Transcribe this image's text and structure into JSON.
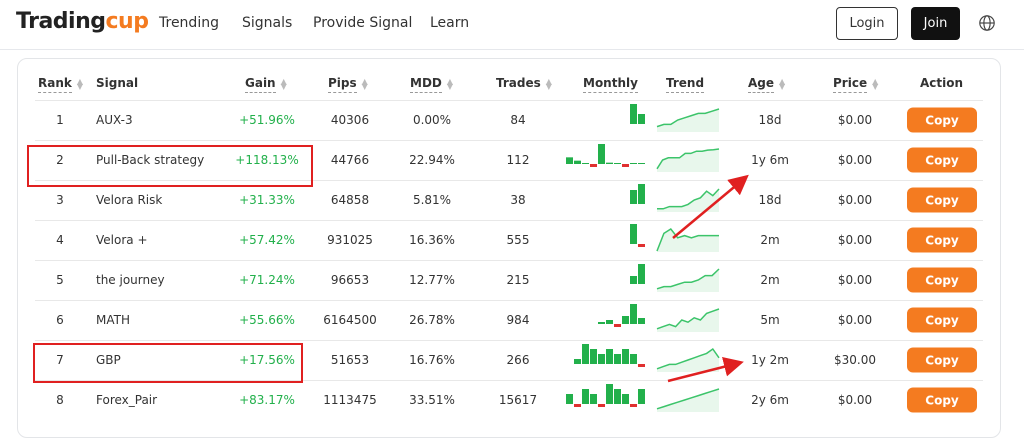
{
  "header": {
    "logo_main": "Trading",
    "logo_accent": "cup",
    "nav": [
      "Trending",
      "Signals",
      "Provide Signal",
      "Learn"
    ],
    "login": "Login",
    "join": "Join",
    "globe_icon": "globe-icon"
  },
  "table": {
    "columns": [
      "Rank",
      "Signal",
      "Gain",
      "Pips",
      "MDD",
      "Trades",
      "Monthly",
      "Trend",
      "Age",
      "Price",
      "Action"
    ],
    "copy_label": "Copy",
    "colors": {
      "positive": "#22b04b",
      "negative": "#e03030",
      "accent": "#f47b20"
    },
    "rows": [
      {
        "rank": "1",
        "signal": "AUX-3",
        "gain": "+51.96%",
        "pips": "40306",
        "mdd": "0.00%",
        "trades": "84",
        "age": "18d",
        "price": "$0.00",
        "monthly": [
          10,
          5
        ],
        "trend": [
          2,
          3,
          3,
          5,
          6,
          7,
          8,
          8,
          9,
          10
        ]
      },
      {
        "rank": "2",
        "signal": "Pull-Back strategy",
        "gain": "+118.13%",
        "pips": "44766",
        "mdd": "22.94%",
        "trades": "112",
        "age": "1y 6m",
        "price": "$0.00",
        "monthly": [
          2,
          1,
          0,
          -1.5,
          6,
          0.4,
          0.3,
          -0.2,
          0.2,
          0.3
        ],
        "trend": [
          1,
          5,
          6,
          6,
          6,
          8,
          8,
          9,
          9,
          9.5,
          9.7,
          10
        ]
      },
      {
        "rank": "3",
        "signal": "Velora Risk",
        "gain": "+31.33%",
        "pips": "64858",
        "mdd": "5.81%",
        "trades": "38",
        "age": "18d",
        "price": "$0.00",
        "monthly": [
          7,
          10
        ],
        "trend": [
          1,
          1,
          2,
          2,
          2,
          3,
          5,
          6,
          9,
          7,
          10
        ]
      },
      {
        "rank": "4",
        "signal": "Velora +",
        "gain": "+57.42%",
        "pips": "931025",
        "mdd": "16.36%",
        "trades": "555",
        "age": "2m",
        "price": "$0.00",
        "monthly": [
          10,
          -1
        ],
        "trend": [
          0,
          8,
          10,
          6,
          7,
          6,
          7,
          7,
          7,
          7
        ]
      },
      {
        "rank": "5",
        "signal": "the journey",
        "gain": "+71.24%",
        "pips": "96653",
        "mdd": "12.77%",
        "trades": "215",
        "age": "2m",
        "price": "$0.00",
        "monthly": [
          4,
          10
        ],
        "trend": [
          1,
          2,
          2,
          3,
          4,
          4,
          5,
          7,
          7,
          10
        ]
      },
      {
        "rank": "6",
        "signal": "MATH",
        "gain": "+55.66%",
        "pips": "6164500",
        "mdd": "26.78%",
        "trades": "984",
        "age": "5m",
        "price": "$0.00",
        "monthly": [
          1,
          2,
          -1,
          4,
          10,
          3
        ],
        "trend": [
          1,
          2,
          3,
          2,
          5,
          4,
          6,
          5,
          8,
          9,
          10
        ]
      },
      {
        "rank": "7",
        "signal": "GBP",
        "gain": "+17.56%",
        "pips": "51653",
        "mdd": "16.76%",
        "trades": "266",
        "age": "1y 2m",
        "price": "$30.00",
        "monthly": [
          1,
          4,
          3,
          2,
          3,
          2,
          3,
          2,
          -2
        ],
        "trend": [
          1,
          2,
          3,
          3,
          4,
          5,
          6,
          7,
          8,
          10,
          6
        ]
      },
      {
        "rank": "8",
        "signal": "Forex_Pair",
        "gain": "+83.17%",
        "pips": "1113475",
        "mdd": "33.51%",
        "trades": "15617",
        "age": "2y 6m",
        "price": "$0.00",
        "monthly": [
          2,
          -1,
          3,
          2,
          -2,
          4,
          3,
          2,
          -1,
          3
        ],
        "trend": [
          1,
          2,
          3,
          4,
          5,
          6,
          7,
          8,
          9,
          10
        ]
      }
    ]
  }
}
